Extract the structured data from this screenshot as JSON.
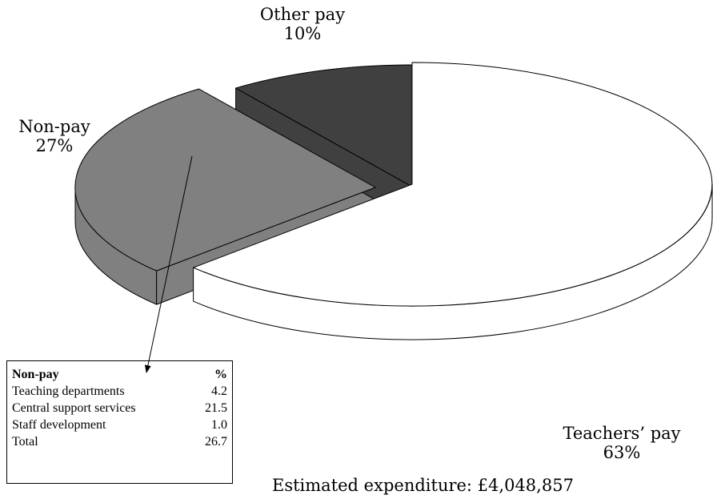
{
  "chart_data": {
    "type": "pie",
    "categories": [
      "Teachers’ pay",
      "Non-pay",
      "Other pay"
    ],
    "values": [
      63,
      27,
      10
    ],
    "value_labels": [
      "63%",
      "27%",
      "10%"
    ],
    "colors": [
      "#ffffff",
      "#808080",
      "#404040"
    ],
    "annotation": "Estimated expenditure: £4,048,857"
  },
  "table": {
    "header": [
      "Non-pay",
      "%"
    ],
    "rows": [
      [
        "Teaching departments",
        "4.2"
      ],
      [
        "Central support services",
        "21.5"
      ],
      [
        "Staff development",
        "1.0"
      ],
      [
        "Total",
        "26.7"
      ]
    ]
  }
}
